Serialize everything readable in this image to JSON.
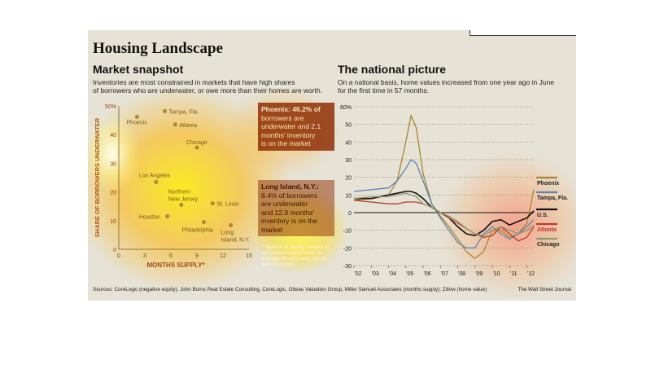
{
  "header": {
    "title": "Housing Landscape",
    "left_subtitle": "Market snapshot",
    "left_desc_1": "Inventories are most constrained in markets that have high shares",
    "left_desc_2": "of borrowers who are underwater, or owe more than their homes are worth.",
    "right_subtitle": "The national picture",
    "right_desc_1": "On a national basis, home values increased from one year ago in June",
    "right_desc_2": "for the first time in 57 months."
  },
  "callouts": {
    "phoenix_lines": [
      "Phoenix: 46.2% of",
      "borrowers are",
      "underwater and 2.1",
      "months' inventory",
      "is on the market"
    ],
    "li_lines": [
      "Long Island, N.Y.:",
      "8.4% of borrowers",
      "are underwater",
      "and 12.9 months'",
      "inventory is on the",
      "market"
    ],
    "footnote": "* Number of months needed to sell current supply based on average monthly sales rate for past 12 months"
  },
  "footer": {
    "sources": "Sources: CoreLogic (negative equity); John Burns Real Estate Consulting, CoreLogic, Otteau Valuation Group, Miller Samuel Associates (months supply); Zillow (home value)",
    "credit": "The Wall Street Journal"
  },
  "colors": {
    "Phoenix": "#a8862a",
    "Tampa, Fla.": "#5b84b5",
    "U.S.": "#111111",
    "Atlanta": "#c0392b",
    "Chicago": "#8a9a6a",
    "point": "#b08a3a",
    "overlay": "#c97a00"
  },
  "chart_data": [
    {
      "type": "scatter",
      "title": "Market snapshot",
      "xlabel": "MONTHS SUPPLY*",
      "ylabel": "SHARE OF BORROWERS UNDERWATER",
      "xlim": [
        0,
        15
      ],
      "ylim": [
        0,
        50
      ],
      "xticks": [
        "0",
        "3",
        "6",
        "9",
        "12",
        "15"
      ],
      "yticks": [
        "0",
        "10",
        "20",
        "30",
        "40",
        "50%"
      ],
      "points": [
        {
          "label": "Phoenix",
          "x": 2.1,
          "y": 46.2
        },
        {
          "label": "Tampa, Fla.",
          "x": 5.3,
          "y": 48.2
        },
        {
          "label": "Atlanta",
          "x": 6.5,
          "y": 43.5
        },
        {
          "label": "Chicago",
          "x": 9.0,
          "y": 35.5
        },
        {
          "label": "Los Angeles",
          "x": 4.3,
          "y": 23.5
        },
        {
          "label": "Northern New Jersey",
          "x": 7.2,
          "y": 15.5
        },
        {
          "label": "St. Louis",
          "x": 10.8,
          "y": 16.0
        },
        {
          "label": "Houston",
          "x": 5.6,
          "y": 11.5
        },
        {
          "label": "Philadelphia",
          "x": 9.8,
          "y": 9.5
        },
        {
          "label": "Long Island, N.Y.",
          "x": 12.9,
          "y": 8.4
        }
      ]
    },
    {
      "type": "line",
      "title": "The national picture",
      "ylim": [
        -30,
        60
      ],
      "yticks": [
        "60%",
        "50",
        "40",
        "30",
        "20",
        "10",
        "0",
        "-10",
        "-20",
        "-30"
      ],
      "xticks": [
        "'02",
        "'03",
        "'04",
        "'05",
        "'06",
        "'07",
        "'08",
        "'09",
        "'10",
        "'11",
        "'12"
      ],
      "x": [
        2002.0,
        2003.0,
        2004.0,
        2004.5,
        2005.0,
        2005.3,
        2005.6,
        2006.0,
        2006.5,
        2007.0,
        2007.5,
        2008.0,
        2008.5,
        2009.0,
        2009.5,
        2010.0,
        2010.5,
        2011.0,
        2011.5,
        2012.0,
        2012.4
      ],
      "series": [
        {
          "name": "Phoenix",
          "values": [
            7,
            8,
            10,
            18,
            40,
            55,
            48,
            22,
            5,
            -2,
            -8,
            -15,
            -22,
            -26,
            -22,
            -10,
            -10,
            -14,
            -12,
            -6,
            13
          ]
        },
        {
          "name": "Tampa, Fla.",
          "values": [
            12,
            13,
            14,
            18,
            25,
            30,
            28,
            18,
            5,
            -3,
            -10,
            -17,
            -20,
            -20,
            -12,
            -8,
            -12,
            -15,
            -12,
            -8,
            -4
          ]
        },
        {
          "name": "U.S.",
          "values": [
            8,
            8,
            10,
            11,
            12,
            12,
            11,
            8,
            3,
            0,
            -3,
            -8,
            -12,
            -13,
            -10,
            -5,
            -4,
            -7,
            -5,
            -3,
            1
          ]
        },
        {
          "name": "Atlanta",
          "values": [
            7,
            6,
            5,
            5,
            6,
            6,
            6,
            5,
            3,
            0,
            -3,
            -6,
            -9,
            -12,
            -14,
            -13,
            -8,
            -12,
            -16,
            -14,
            -8
          ]
        },
        {
          "name": "Chicago",
          "values": [
            8,
            9,
            9,
            10,
            11,
            10,
            9,
            5,
            3,
            0,
            -2,
            -5,
            -9,
            -12,
            -13,
            -10,
            -8,
            -10,
            -12,
            -10,
            -7
          ]
        }
      ]
    }
  ]
}
